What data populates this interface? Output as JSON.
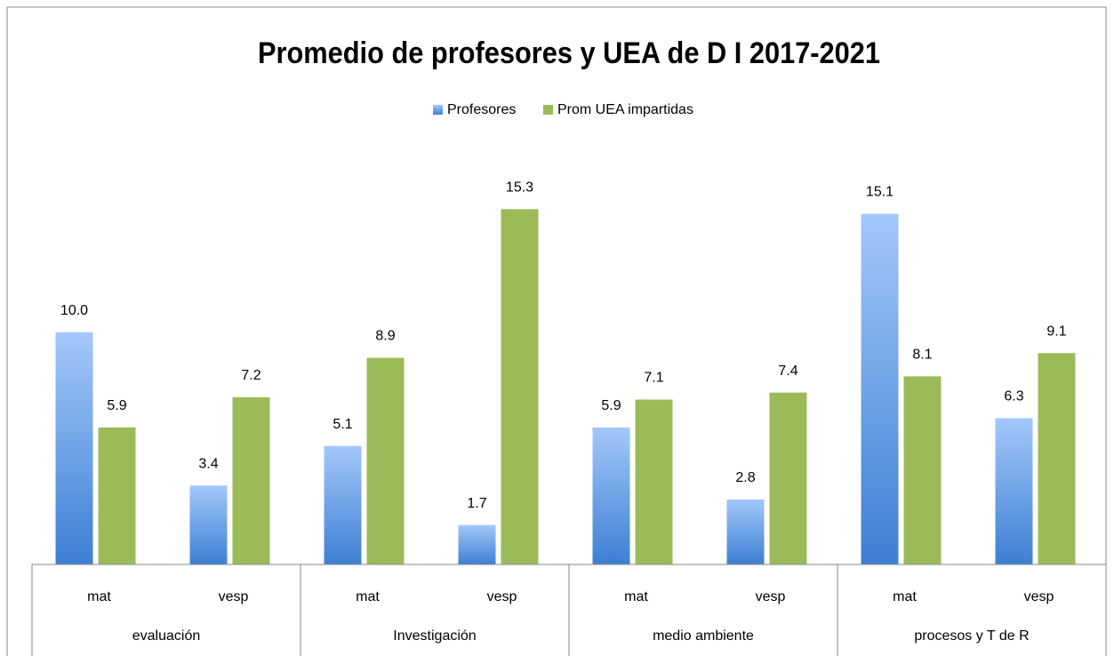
{
  "chart_data": {
    "type": "bar",
    "title": "Promedio de profesores y UEA de D I 2017-2021",
    "categories": [
      "mat",
      "vesp",
      "mat",
      "vesp",
      "mat",
      "vesp",
      "mat",
      "vesp"
    ],
    "groups": [
      "evaluación",
      "Investigación",
      "medio ambiente",
      "procesos y T de R"
    ],
    "series": [
      {
        "name": "Profesores",
        "color": "#5b9bd5",
        "values": [
          10.0,
          3.4,
          5.1,
          1.7,
          5.9,
          2.8,
          15.1,
          6.3
        ],
        "value_labels": [
          "10.0",
          "3.4",
          "5.1",
          "1.7",
          "5.9",
          "2.8",
          "15.1",
          "6.3"
        ]
      },
      {
        "name": "Prom UEA impartidas",
        "color": "#9bbb59",
        "values": [
          5.9,
          7.2,
          8.9,
          15.3,
          7.1,
          7.4,
          8.1,
          9.1
        ],
        "value_labels": [
          "5.9",
          "7.2",
          "8.9",
          "15.3",
          "7.1",
          "7.4",
          "8.1",
          "9.1"
        ]
      }
    ],
    "ylim": [
      0,
      16
    ],
    "legend": "top"
  }
}
